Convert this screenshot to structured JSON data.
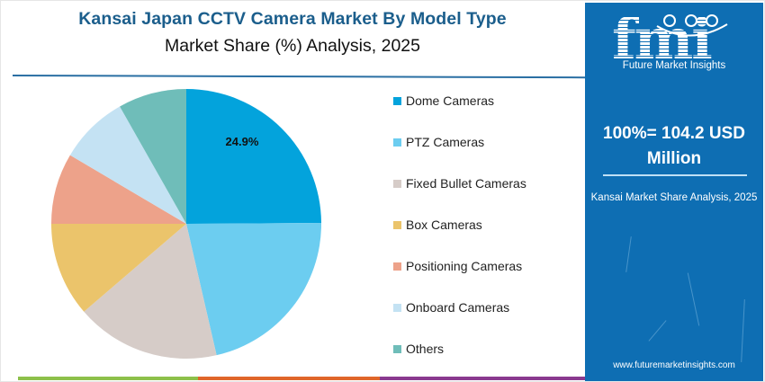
{
  "header": {
    "title": "Kansai Japan CCTV Camera Market By Model Type",
    "subtitle": "Market Share (%) Analysis, 2025"
  },
  "colors": {
    "title": "#1b5e8c",
    "divider": "#2a6fa3",
    "side_panel": "#0e6eb3",
    "bottom_bar": [
      "#8dc04a",
      "#e0662a",
      "#8a3a8f"
    ]
  },
  "chart_data": {
    "type": "pie",
    "title": "Kansai Japan CCTV Camera Market By Model Type",
    "subtitle": "Market Share (%) Analysis, 2025",
    "start_angle_deg": 0,
    "direction": "clockwise",
    "categories": [
      "Dome Cameras",
      "PTZ Cameras",
      "Fixed Bullet Cameras",
      "Box Cameras",
      "Positioning Cameras",
      "Onboard Cameras",
      "Others"
    ],
    "values": [
      24.9,
      21.5,
      17.3,
      11.3,
      8.5,
      8.3,
      8.2
    ],
    "colors": [
      "#03a3dc",
      "#6ccdf0",
      "#d6ccc8",
      "#ebc46b",
      "#eda28a",
      "#c4e2f3",
      "#6fbdb9"
    ],
    "data_labels": [
      {
        "category": "Dome Cameras",
        "text": "24.9%"
      }
    ],
    "legend_position": "right",
    "units": "%"
  },
  "legend": {
    "items": [
      {
        "label": "Dome Cameras",
        "color": "#03a3dc"
      },
      {
        "label": "PTZ Cameras",
        "color": "#6ccdf0"
      },
      {
        "label": "Fixed Bullet Cameras",
        "color": "#d6ccc8"
      },
      {
        "label": "Box Cameras",
        "color": "#ebc46b"
      },
      {
        "label": "Positioning Cameras",
        "color": "#eda28a"
      },
      {
        "label": "Onboard Cameras",
        "color": "#c4e2f3"
      },
      {
        "label": "Others",
        "color": "#6fbdb9"
      }
    ]
  },
  "side_panel": {
    "logo_text": "fmi",
    "logo_subtitle": "Future Market Insights",
    "total_line1": "100%= 104.2 USD",
    "total_line2": "Million",
    "caption": "Kansai Market Share Analysis, 2025",
    "url": "www.futuremarketinsights.com"
  }
}
